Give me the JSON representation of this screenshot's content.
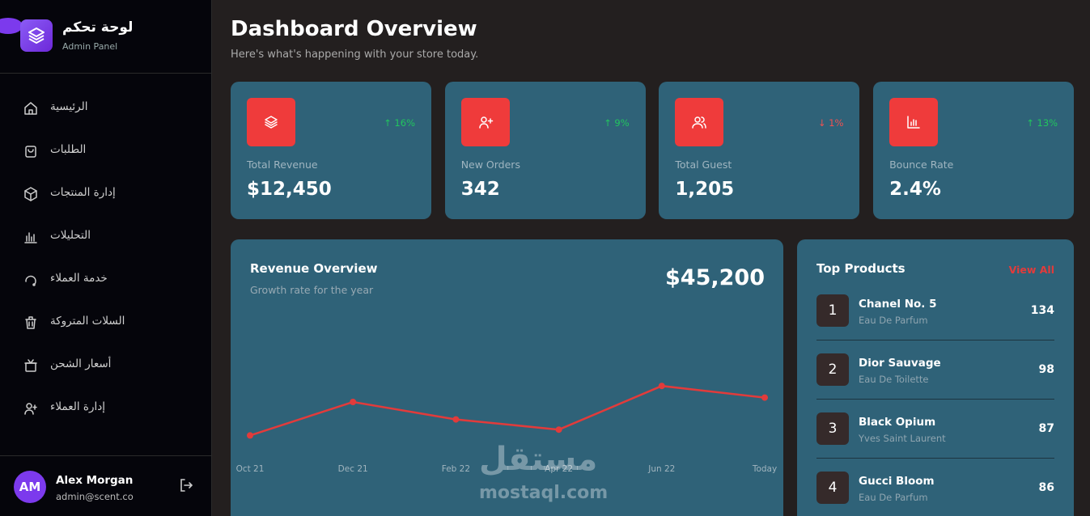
{
  "sidebar": {
    "brand_title": "لوحة تحكم",
    "brand_subtitle": "Admin Panel",
    "nav": [
      "الرئيسية",
      "الطلبات",
      "إدارة المنتجات",
      "التحليلات",
      "خدمة العملاء",
      "السلات المتروكة",
      "أسعار الشحن",
      "إدارة العملاء"
    ],
    "user": {
      "initials": "AM",
      "name": "Alex Morgan",
      "email": "admin@scent.co"
    }
  },
  "header": {
    "title": "Dashboard Overview",
    "subtitle": "Here's what's happening with your store today."
  },
  "stats": [
    {
      "label": "Total Revenue",
      "value": "$12,450",
      "change": "↑ 16%",
      "trend": "up"
    },
    {
      "label": "New Orders",
      "value": "342",
      "change": "↑ 9%",
      "trend": "up"
    },
    {
      "label": "Total Guest",
      "value": "1,205",
      "change": "↓ 1%",
      "trend": "down"
    },
    {
      "label": "Bounce Rate",
      "value": "2.4%",
      "change": "↑ 13%",
      "trend": "up"
    }
  ],
  "chart_data": {
    "type": "line",
    "title": "Revenue Overview",
    "subtitle": "Growth rate for the year",
    "total": "$45,200",
    "categories": [
      "Oct 21",
      "Dec 21",
      "Feb 22",
      "Apr 22",
      "Jun 22",
      "Today"
    ],
    "values": [
      12,
      35,
      23,
      16,
      46,
      38
    ],
    "color": "#e23b3b",
    "ylim": [
      0,
      100
    ]
  },
  "top_products": {
    "title": "Top Products",
    "view_all": "View All",
    "items": [
      {
        "rank": 1,
        "name": "Chanel No. 5",
        "subtitle": "Eau De Parfum",
        "count": 134
      },
      {
        "rank": 2,
        "name": "Dior Sauvage",
        "subtitle": "Eau De Toilette",
        "count": 98
      },
      {
        "rank": 3,
        "name": "Black Opium",
        "subtitle": "Yves Saint Laurent",
        "count": 87
      },
      {
        "rank": 4,
        "name": "Gucci Bloom",
        "subtitle": "Eau De Parfum",
        "count": 86
      }
    ]
  },
  "watermark": {
    "arabic": "مستقل",
    "latin": "mostaql.com"
  }
}
